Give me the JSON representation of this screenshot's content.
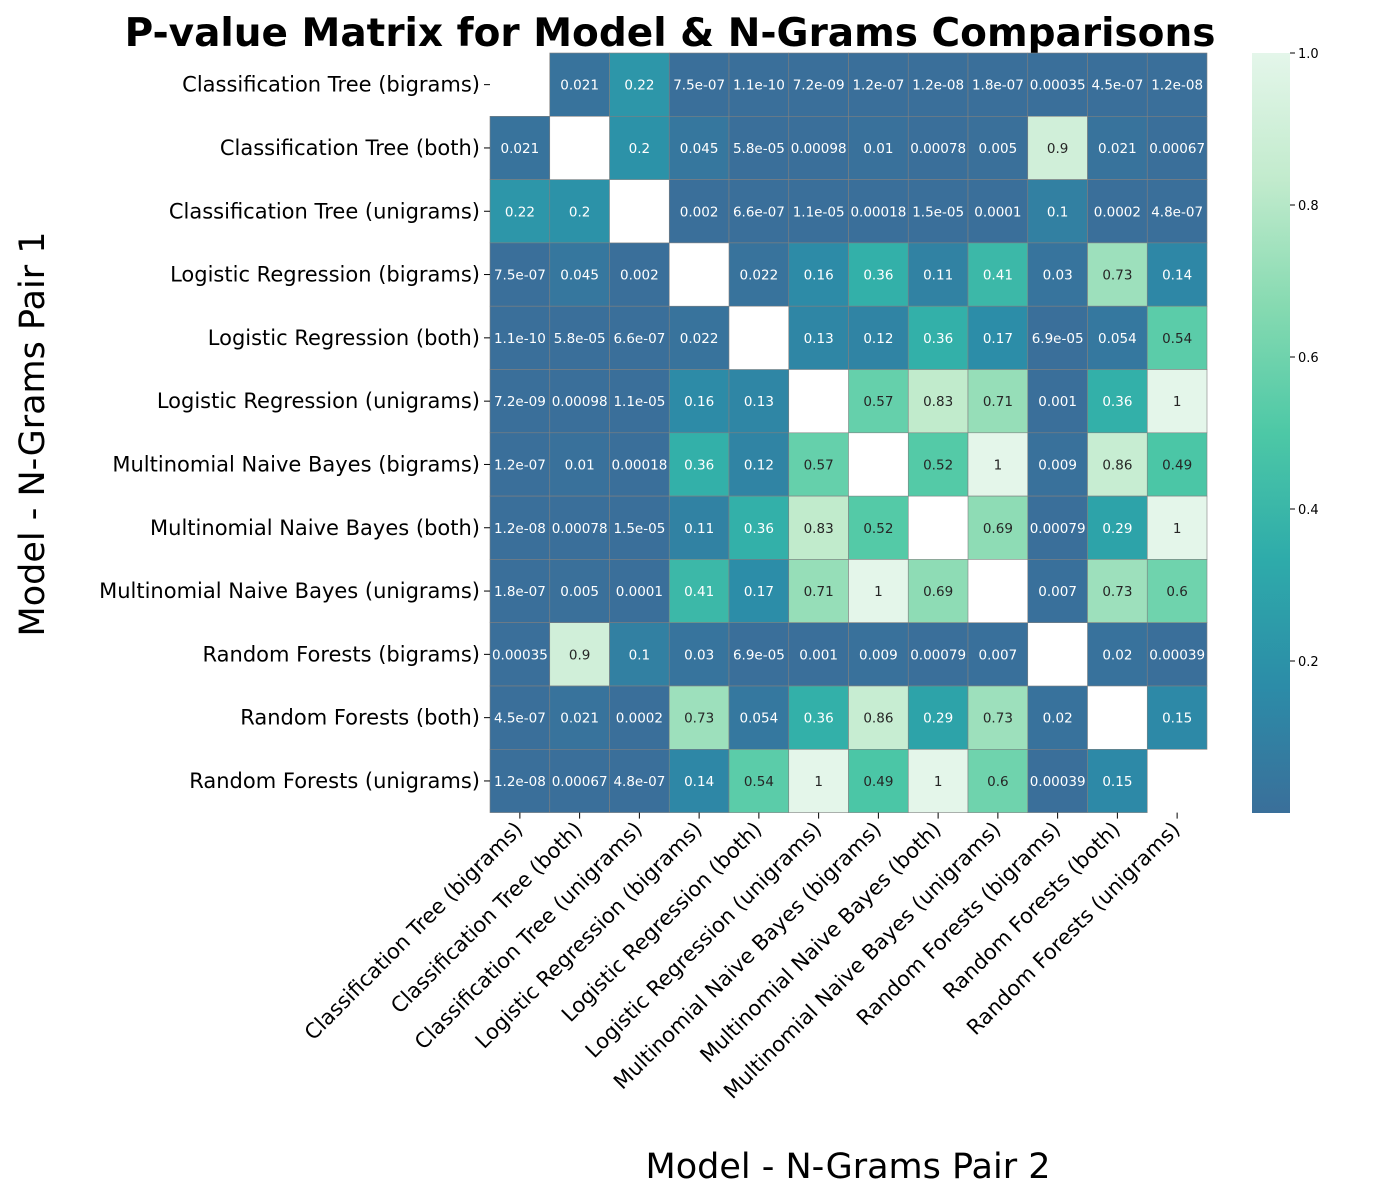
{
  "chart_data": {
    "type": "heatmap",
    "title": "P-value Matrix for Model & N-Grams Comparisons",
    "xlabel": "Model - N-Grams Pair 2",
    "ylabel": "Model - N-Grams Pair 1",
    "labels": [
      "Classification Tree (bigrams)",
      "Classification Tree (both)",
      "Classification Tree (unigrams)",
      "Logistic Regression (bigrams)",
      "Logistic Regression (both)",
      "Logistic Regression (unigrams)",
      "Multinomial Naive Bayes (bigrams)",
      "Multinomial Naive Bayes (both)",
      "Multinomial Naive Bayes (unigrams)",
      "Random Forests (bigrams)",
      "Random Forests (both)",
      "Random Forests (unigrams)"
    ],
    "cell_text": [
      [
        "",
        "0.021",
        "0.22",
        "7.5e-07",
        "1.1e-10",
        "7.2e-09",
        "1.2e-07",
        "1.2e-08",
        "1.8e-07",
        "0.00035",
        "4.5e-07",
        "1.2e-08"
      ],
      [
        "0.021",
        "",
        "0.2",
        "0.045",
        "5.8e-05",
        "0.00098",
        "0.01",
        "0.00078",
        "0.005",
        "0.9",
        "0.021",
        "0.00067"
      ],
      [
        "0.22",
        "0.2",
        "",
        "0.002",
        "6.6e-07",
        "1.1e-05",
        "0.00018",
        "1.5e-05",
        "0.0001",
        "0.1",
        "0.0002",
        "4.8e-07"
      ],
      [
        "7.5e-07",
        "0.045",
        "0.002",
        "",
        "0.022",
        "0.16",
        "0.36",
        "0.11",
        "0.41",
        "0.03",
        "0.73",
        "0.14"
      ],
      [
        "1.1e-10",
        "5.8e-05",
        "6.6e-07",
        "0.022",
        "",
        "0.13",
        "0.12",
        "0.36",
        "0.17",
        "6.9e-05",
        "0.054",
        "0.54"
      ],
      [
        "7.2e-09",
        "0.00098",
        "1.1e-05",
        "0.16",
        "0.13",
        "",
        "0.57",
        "0.83",
        "0.71",
        "0.001",
        "0.36",
        "1"
      ],
      [
        "1.2e-07",
        "0.01",
        "0.00018",
        "0.36",
        "0.12",
        "0.57",
        "",
        "0.52",
        "1",
        "0.009",
        "0.86",
        "0.49"
      ],
      [
        "1.2e-08",
        "0.00078",
        "1.5e-05",
        "0.11",
        "0.36",
        "0.83",
        "0.52",
        "",
        "0.69",
        "0.00079",
        "0.29",
        "1"
      ],
      [
        "1.8e-07",
        "0.005",
        "0.0001",
        "0.41",
        "0.17",
        "0.71",
        "1",
        "0.69",
        "",
        "0.007",
        "0.73",
        "0.6"
      ],
      [
        "0.00035",
        "0.9",
        "0.1",
        "0.03",
        "6.9e-05",
        "0.001",
        "0.009",
        "0.00079",
        "0.007",
        "",
        "0.02",
        "0.00039"
      ],
      [
        "4.5e-07",
        "0.021",
        "0.0002",
        "0.73",
        "0.054",
        "0.36",
        "0.86",
        "0.29",
        "0.73",
        "0.02",
        "",
        "0.15"
      ],
      [
        "1.2e-08",
        "0.00067",
        "4.8e-07",
        "0.14",
        "0.54",
        "1",
        "0.49",
        "1",
        "0.6",
        "0.00039",
        "0.15",
        ""
      ]
    ],
    "colorbar": {
      "vmin": 0,
      "vmax": 1,
      "ticks": [
        "0.2",
        "0.4",
        "0.6",
        "0.8",
        "1.0"
      ],
      "tick_values": [
        0.2,
        0.4,
        0.6,
        0.8,
        1.0
      ]
    },
    "colormap": [
      "#3a6f9a",
      "#2c8ca8",
      "#2eabaa",
      "#4dc8a6",
      "#86dab1",
      "#c2ebcd",
      "#e4f6ea"
    ],
    "diagonal": "blank",
    "grid": false
  }
}
